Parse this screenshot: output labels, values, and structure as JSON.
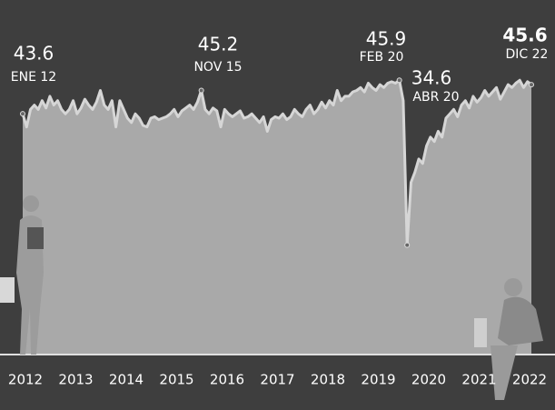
{
  "chart_data": {
    "type": "area",
    "x": [
      "2012-01",
      "2012-02",
      "2012-03",
      "2012-04",
      "2012-05",
      "2012-06",
      "2012-07",
      "2012-08",
      "2012-09",
      "2012-10",
      "2012-11",
      "2012-12",
      "2013-01",
      "2013-02",
      "2013-03",
      "2013-04",
      "2013-05",
      "2013-06",
      "2013-07",
      "2013-08",
      "2013-09",
      "2013-10",
      "2013-11",
      "2013-12",
      "2014-01",
      "2014-02",
      "2014-03",
      "2014-04",
      "2014-05",
      "2014-06",
      "2014-07",
      "2014-08",
      "2014-09",
      "2014-10",
      "2014-11",
      "2014-12",
      "2015-01",
      "2015-02",
      "2015-03",
      "2015-04",
      "2015-05",
      "2015-06",
      "2015-07",
      "2015-08",
      "2015-09",
      "2015-10",
      "2015-11",
      "2015-12",
      "2016-01",
      "2016-02",
      "2016-03",
      "2016-04",
      "2016-05",
      "2016-06",
      "2016-07",
      "2016-08",
      "2016-09",
      "2016-10",
      "2016-11",
      "2016-12",
      "2017-01",
      "2017-02",
      "2017-03",
      "2017-04",
      "2017-05",
      "2017-06",
      "2017-07",
      "2017-08",
      "2017-09",
      "2017-10",
      "2017-11",
      "2017-12",
      "2018-01",
      "2018-02",
      "2018-03",
      "2018-04",
      "2018-05",
      "2018-06",
      "2018-07",
      "2018-08",
      "2018-09",
      "2018-10",
      "2018-11",
      "2018-12",
      "2019-01",
      "2019-02",
      "2019-03",
      "2019-04",
      "2019-05",
      "2019-06",
      "2019-07",
      "2019-08",
      "2019-09",
      "2019-10",
      "2019-11",
      "2019-12",
      "2020-01",
      "2020-02",
      "2020-03",
      "2020-04",
      "2020-05",
      "2020-06",
      "2020-07",
      "2020-08",
      "2020-09",
      "2020-10",
      "2020-11",
      "2020-12",
      "2021-01",
      "2021-02",
      "2021-03",
      "2021-04",
      "2021-05",
      "2021-06",
      "2021-07",
      "2021-08",
      "2021-09",
      "2021-10",
      "2021-11",
      "2021-12",
      "2022-01",
      "2022-02",
      "2022-03",
      "2022-04",
      "2022-05",
      "2022-06",
      "2022-07",
      "2022-08",
      "2022-09",
      "2022-10",
      "2022-11",
      "2022-12"
    ],
    "series": [
      {
        "color": "#a9a9a9",
        "values": [
          43.6,
          42.7,
          43.9,
          44.2,
          43.9,
          44.5,
          44.0,
          44.8,
          44.2,
          44.5,
          43.9,
          43.6,
          43.9,
          44.5,
          43.6,
          44.0,
          44.6,
          44.2,
          43.9,
          44.4,
          45.2,
          44.2,
          43.9,
          44.5,
          42.7,
          44.5,
          43.9,
          43.3,
          43.0,
          43.6,
          43.3,
          42.8,
          42.7,
          43.3,
          43.4,
          43.2,
          43.3,
          43.4,
          43.6,
          43.9,
          43.4,
          43.8,
          44.0,
          44.2,
          43.9,
          44.4,
          45.2,
          43.9,
          43.6,
          44.0,
          43.8,
          42.7,
          43.9,
          43.6,
          43.4,
          43.6,
          43.8,
          43.3,
          43.4,
          43.6,
          43.3,
          43.0,
          43.4,
          42.4,
          43.2,
          43.4,
          43.3,
          43.6,
          43.2,
          43.4,
          43.9,
          43.6,
          43.4,
          43.9,
          44.2,
          43.6,
          43.9,
          44.4,
          44.0,
          44.5,
          44.2,
          45.2,
          44.5,
          44.8,
          44.8,
          45.1,
          45.2,
          45.4,
          45.1,
          45.7,
          45.4,
          45.2,
          45.6,
          45.4,
          45.7,
          45.8,
          45.7,
          45.9,
          44.5,
          34.6,
          38.9,
          39.6,
          40.5,
          40.2,
          41.4,
          42.0,
          41.7,
          42.4,
          42.0,
          43.3,
          43.6,
          43.9,
          43.4,
          44.2,
          44.5,
          44.0,
          44.8,
          44.4,
          44.7,
          45.2,
          44.8,
          45.1,
          45.4,
          44.6,
          45.1,
          45.6,
          45.4,
          45.7,
          45.9,
          45.4,
          45.8,
          45.6
        ]
      }
    ],
    "ylim": [
      27.1,
      51.4
    ],
    "xticks": [
      2012,
      2013,
      2014,
      2015,
      2016,
      2017,
      2018,
      2019,
      2020,
      2021,
      2022
    ],
    "grid": false,
    "annotations": [
      {
        "x": "2012-01",
        "value": 43.6,
        "text": "ENE 12"
      },
      {
        "x": "2015-11",
        "value": 45.2,
        "text": "NOV 15"
      },
      {
        "x": "2020-02",
        "value": 45.9,
        "text": "FEB 20"
      },
      {
        "x": "2020-04",
        "value": 34.6,
        "text": "ABR 20"
      },
      {
        "x": "2022-12",
        "value": 45.6,
        "text": "DIC 22"
      }
    ]
  }
}
